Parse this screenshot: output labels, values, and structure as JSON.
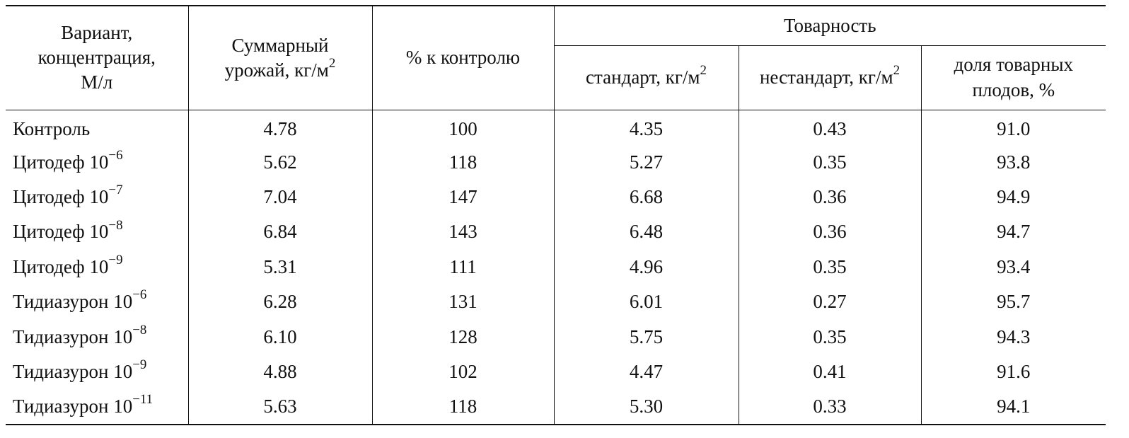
{
  "table": {
    "headers": {
      "variant": [
        "Вариант,",
        "концентрация,",
        "М/л"
      ],
      "total_yield_line1": "Суммарный",
      "total_yield_line2": "урожай, кг/м",
      "total_yield_sup": "2",
      "percent_control": "% к контролю",
      "marketability": "Товарность",
      "standard": "стандарт, кг/м",
      "standard_sup": "2",
      "nonstandard": "нестандарт, кг/м",
      "nonstandard_sup": "2",
      "share_line1": "доля товарных",
      "share_line2": "плодов, %"
    },
    "rows": [
      {
        "name": "Контроль",
        "exp": "",
        "total": "4.78",
        "pct": "100",
        "std": "4.35",
        "nonstd": "0.43",
        "share": "91.0"
      },
      {
        "name": "Цитодеф 10",
        "exp": "−6",
        "total": "5.62",
        "pct": "118",
        "std": "5.27",
        "nonstd": "0.35",
        "share": "93.8"
      },
      {
        "name": "Цитодеф 10",
        "exp": "−7",
        "total": "7.04",
        "pct": "147",
        "std": "6.68",
        "nonstd": "0.36",
        "share": "94.9"
      },
      {
        "name": "Цитодеф 10",
        "exp": "−8",
        "total": "6.84",
        "pct": "143",
        "std": "6.48",
        "nonstd": "0.36",
        "share": "94.7"
      },
      {
        "name": "Цитодеф 10",
        "exp": "−9",
        "total": "5.31",
        "pct": "111",
        "std": "4.96",
        "nonstd": "0.35",
        "share": "93.4"
      },
      {
        "name": "Тидиазурон 10",
        "exp": "−6",
        "total": "6.28",
        "pct": "131",
        "std": "6.01",
        "nonstd": "0.27",
        "share": "95.7"
      },
      {
        "name": "Тидиазурон 10",
        "exp": "−8",
        "total": "6.10",
        "pct": "128",
        "std": "5.75",
        "nonstd": "0.35",
        "share": "94.3"
      },
      {
        "name": "Тидиазурон 10",
        "exp": "−9",
        "total": "4.88",
        "pct": "102",
        "std": "4.47",
        "nonstd": "0.41",
        "share": "91.6"
      },
      {
        "name": "Тидиазурон 10",
        "exp": "−11",
        "total": "5.63",
        "pct": "118",
        "std": "5.30",
        "nonstd": "0.33",
        "share": "94.1"
      }
    ]
  }
}
